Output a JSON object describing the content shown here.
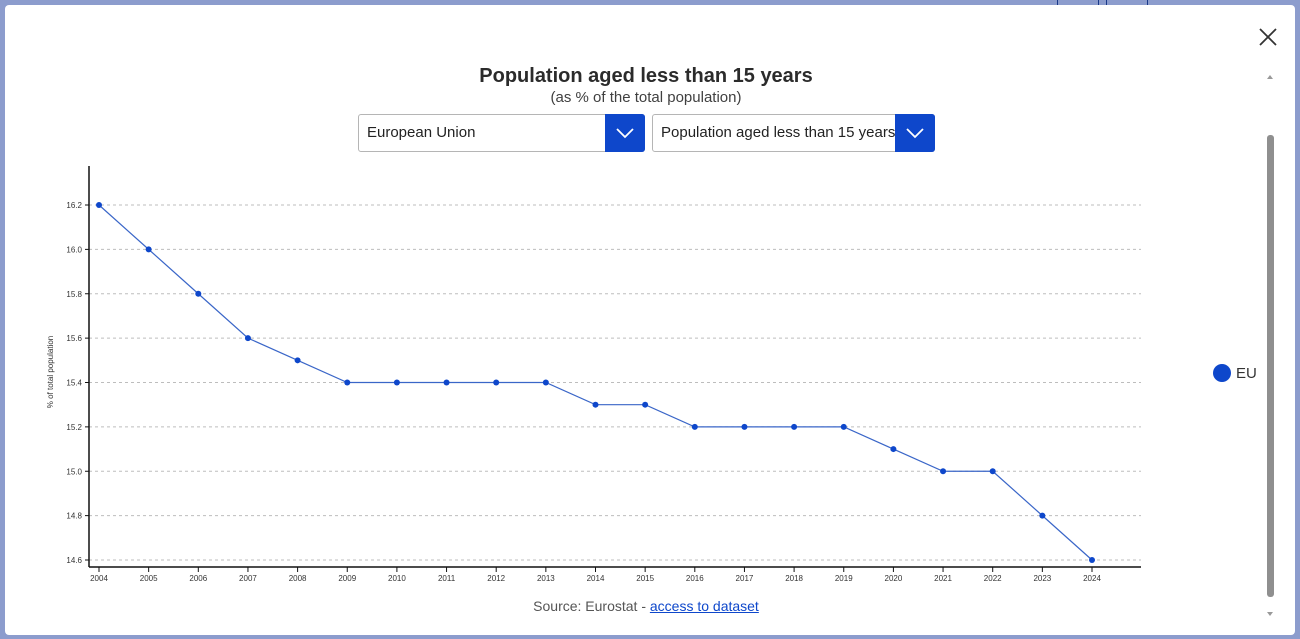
{
  "modal": {
    "close_icon": "close-icon"
  },
  "header": {
    "title": "Population aged less than 15 years",
    "subtitle": "(as % of the total population)"
  },
  "filters": {
    "geo_select": {
      "value": "European Union",
      "icon": "chevron-down-icon"
    },
    "indicator_select": {
      "value": "Population aged less than 15 years",
      "icon": "chevron-down-icon"
    }
  },
  "footer": {
    "source_prefix": "Source: Eurostat - ",
    "source_link": "access to dataset"
  },
  "colors": {
    "accent": "#0e47cb",
    "line": "#3a66c8",
    "grid": "#bdbdbd"
  },
  "chart_data": {
    "type": "line",
    "title": "Population aged less than 15 years",
    "subtitle": "(as % of the total population)",
    "xlabel": "",
    "ylabel": "% of total population",
    "x": [
      "2004",
      "2005",
      "2006",
      "2007",
      "2008",
      "2009",
      "2010",
      "2011",
      "2012",
      "2013",
      "2014",
      "2015",
      "2016",
      "2017",
      "2018",
      "2019",
      "2020",
      "2021",
      "2022",
      "2023",
      "2024"
    ],
    "series": [
      {
        "name": "EU",
        "values": [
          16.2,
          16.0,
          15.8,
          15.6,
          15.5,
          15.4,
          15.4,
          15.4,
          15.4,
          15.4,
          15.3,
          15.3,
          15.2,
          15.2,
          15.2,
          15.2,
          15.1,
          15.0,
          15.0,
          14.8,
          14.6
        ]
      }
    ],
    "yticks": [
      "14.6",
      "14.8",
      "15.0",
      "15.2",
      "15.4",
      "15.6",
      "15.8",
      "16.0",
      "16.2"
    ],
    "ylim": [
      14.58,
      16.38
    ],
    "grid": true,
    "legend_position": "right"
  }
}
